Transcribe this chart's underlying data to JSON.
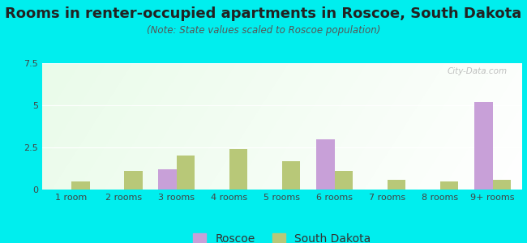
{
  "title": "Rooms in renter-occupied apartments in Roscoe, South Dakota",
  "subtitle": "(Note: State values scaled to Roscoe population)",
  "categories": [
    "1 room",
    "2 rooms",
    "3 rooms",
    "4 rooms",
    "5 rooms",
    "6 rooms",
    "7 rooms",
    "8 rooms",
    "9+ rooms"
  ],
  "roscoe_values": [
    0,
    0,
    1.2,
    0,
    0,
    3.0,
    0,
    0,
    5.2
  ],
  "sd_values": [
    0.5,
    1.1,
    2.0,
    2.4,
    1.7,
    1.1,
    0.6,
    0.5,
    0.6
  ],
  "roscoe_color": "#c8a0d8",
  "sd_color": "#b8c878",
  "background_outer": "#00eeee",
  "ylim": [
    0,
    7.5
  ],
  "yticks": [
    0,
    2.5,
    5,
    7.5
  ],
  "bar_width": 0.35,
  "title_fontsize": 13,
  "subtitle_fontsize": 8.5,
  "tick_fontsize": 8,
  "legend_fontsize": 10,
  "watermark": "City-Data.com",
  "title_color": "#222222",
  "subtitle_color": "#555555",
  "tick_color": "#444444"
}
